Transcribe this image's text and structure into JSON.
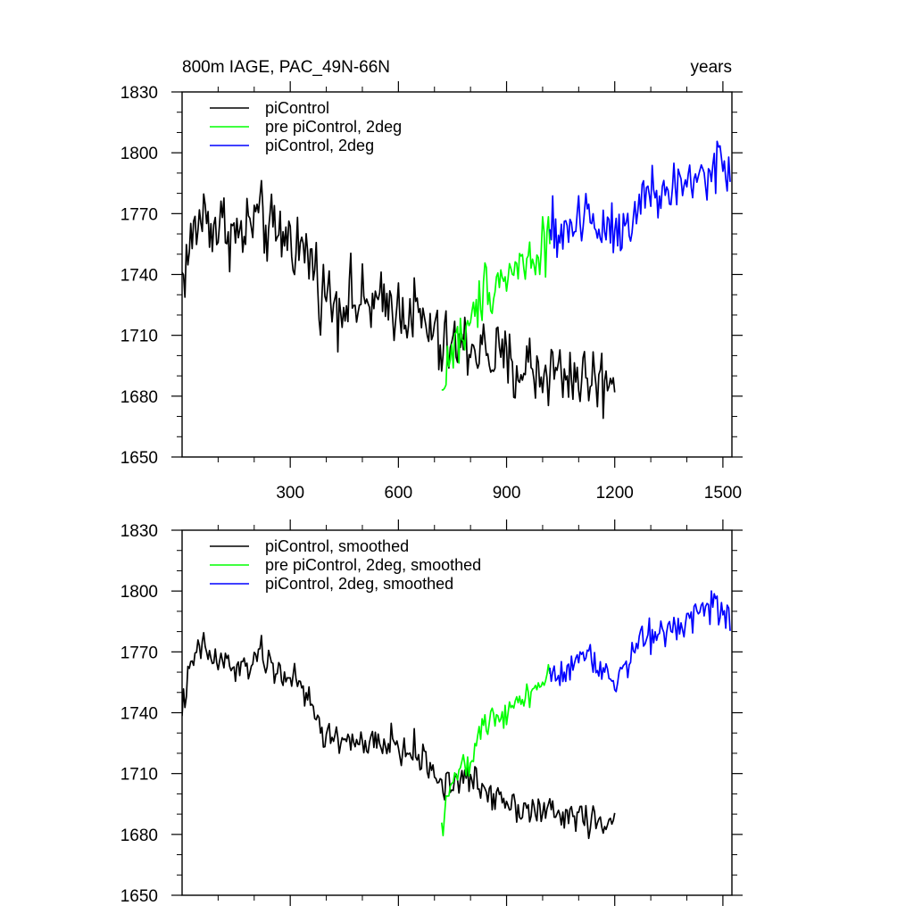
{
  "figure": {
    "title_left": "800m IAGE, PAC_49N-66N",
    "title_right": "years"
  },
  "colors": {
    "black": "#000000",
    "green": "#00ff00",
    "blue": "#0000ff"
  },
  "chart_data": [
    {
      "type": "line",
      "title": "800m IAGE, PAC_49N-66N",
      "xlabel": "",
      "ylabel": "",
      "units": "years",
      "xlim": [
        0,
        1525
      ],
      "ylim": [
        1650,
        1830
      ],
      "xticks": [
        300,
        600,
        900,
        1200,
        1500
      ],
      "yticks": [
        1650,
        1680,
        1710,
        1740,
        1770,
        1800,
        1830
      ],
      "show_xtick_labels": true,
      "legend": "top-left",
      "series": [
        {
          "name": "piControl",
          "color": "#000000",
          "noise": 9,
          "x": [
            0,
            20,
            40,
            60,
            80,
            100,
            120,
            140,
            160,
            180,
            200,
            220,
            240,
            260,
            280,
            300,
            320,
            340,
            360,
            380,
            400,
            420,
            440,
            460,
            480,
            500,
            520,
            540,
            560,
            580,
            600,
            620,
            640,
            660,
            680,
            700,
            720,
            740,
            760,
            780,
            800,
            820,
            840,
            860,
            880,
            900,
            920,
            940,
            960,
            980,
            1000,
            1020,
            1040,
            1060,
            1080,
            1100,
            1120,
            1140,
            1160,
            1180,
            1200
          ],
          "y": [
            1738,
            1752,
            1764,
            1770,
            1766,
            1762,
            1766,
            1760,
            1758,
            1762,
            1768,
            1766,
            1762,
            1758,
            1760,
            1758,
            1755,
            1750,
            1748,
            1735,
            1730,
            1728,
            1725,
            1730,
            1726,
            1724,
            1726,
            1724,
            1722,
            1728,
            1722,
            1724,
            1722,
            1718,
            1712,
            1712,
            1700,
            1706,
            1704,
            1704,
            1706,
            1704,
            1702,
            1700,
            1698,
            1696,
            1692,
            1694,
            1696,
            1692,
            1690,
            1694,
            1692,
            1690,
            1692,
            1690,
            1688,
            1690,
            1686,
            1688,
            1694
          ]
        },
        {
          "name": "pre piControl, 2deg",
          "color": "#00ff00",
          "noise": 7,
          "x": [
            720,
            740,
            760,
            780,
            800,
            820,
            840,
            860,
            880,
            900,
            920,
            940,
            960,
            980,
            1000,
            1020
          ],
          "y": [
            1680,
            1700,
            1706,
            1710,
            1712,
            1726,
            1734,
            1736,
            1738,
            1740,
            1742,
            1746,
            1746,
            1750,
            1756,
            1758
          ]
        },
        {
          "name": "piControl, 2deg",
          "color": "#0000ff",
          "noise": 8,
          "x": [
            1020,
            1040,
            1060,
            1080,
            1100,
            1120,
            1140,
            1160,
            1180,
            1200,
            1220,
            1240,
            1260,
            1280,
            1300,
            1320,
            1340,
            1360,
            1380,
            1400,
            1420,
            1440,
            1460,
            1480,
            1500,
            1520
          ],
          "y": [
            1758,
            1760,
            1762,
            1764,
            1768,
            1770,
            1766,
            1764,
            1766,
            1762,
            1764,
            1770,
            1774,
            1776,
            1778,
            1780,
            1780,
            1782,
            1784,
            1784,
            1788,
            1790,
            1790,
            1794,
            1794,
            1786
          ]
        }
      ]
    },
    {
      "type": "line",
      "title": "",
      "xlabel": "",
      "ylabel": "",
      "xlim": [
        0,
        1525
      ],
      "ylim": [
        1650,
        1830
      ],
      "xticks": [
        300,
        600,
        900,
        1200,
        1500
      ],
      "yticks": [
        1650,
        1680,
        1710,
        1740,
        1770,
        1800,
        1830
      ],
      "show_xtick_labels": false,
      "legend": "top-left",
      "series": [
        {
          "name": "piControl, smoothed",
          "color": "#000000",
          "noise": 4,
          "x": [
            0,
            20,
            40,
            60,
            80,
            100,
            120,
            140,
            160,
            180,
            200,
            220,
            240,
            260,
            280,
            300,
            320,
            340,
            360,
            380,
            400,
            420,
            440,
            460,
            480,
            500,
            520,
            540,
            560,
            580,
            600,
            620,
            640,
            660,
            680,
            700,
            720,
            740,
            760,
            780,
            800,
            820,
            840,
            860,
            880,
            900,
            920,
            940,
            960,
            980,
            1000,
            1020,
            1040,
            1060,
            1080,
            1100,
            1120,
            1140,
            1160,
            1180,
            1200
          ],
          "y": [
            1743,
            1758,
            1770,
            1772,
            1768,
            1764,
            1766,
            1762,
            1760,
            1762,
            1768,
            1768,
            1764,
            1760,
            1760,
            1758,
            1754,
            1748,
            1744,
            1734,
            1728,
            1728,
            1726,
            1728,
            1726,
            1722,
            1724,
            1724,
            1722,
            1728,
            1722,
            1720,
            1722,
            1718,
            1714,
            1712,
            1704,
            1706,
            1706,
            1706,
            1708,
            1704,
            1702,
            1700,
            1700,
            1698,
            1694,
            1694,
            1694,
            1692,
            1690,
            1692,
            1690,
            1688,
            1690,
            1690,
            1688,
            1686,
            1684,
            1690,
            1686
          ]
        },
        {
          "name": "pre piControl, 2deg, smoothed",
          "color": "#00ff00",
          "noise": 3,
          "x": [
            720,
            740,
            760,
            780,
            800,
            820,
            840,
            860,
            880,
            900,
            920,
            940,
            960,
            980,
            1000,
            1020
          ],
          "y": [
            1683,
            1704,
            1710,
            1712,
            1714,
            1728,
            1734,
            1738,
            1740,
            1741,
            1744,
            1748,
            1750,
            1752,
            1755,
            1757
          ]
        },
        {
          "name": "piControl, 2deg, smoothed",
          "color": "#0000ff",
          "noise": 4,
          "x": [
            1020,
            1040,
            1060,
            1080,
            1100,
            1120,
            1140,
            1160,
            1180,
            1200,
            1220,
            1240,
            1260,
            1280,
            1300,
            1320,
            1340,
            1360,
            1380,
            1400,
            1420,
            1440,
            1460,
            1480,
            1500,
            1520
          ],
          "y": [
            1758,
            1758,
            1762,
            1764,
            1768,
            1770,
            1766,
            1762,
            1764,
            1756,
            1760,
            1768,
            1772,
            1776,
            1778,
            1780,
            1780,
            1782,
            1786,
            1786,
            1790,
            1792,
            1792,
            1796,
            1792,
            1786
          ]
        }
      ]
    }
  ]
}
